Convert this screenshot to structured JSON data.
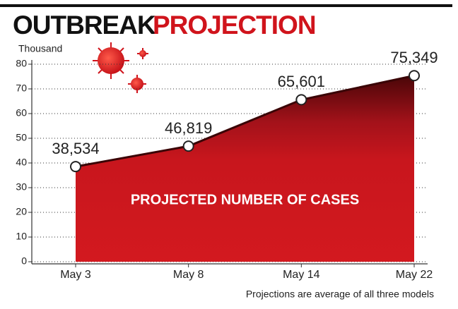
{
  "chart_data": {
    "type": "area",
    "title": "OUTBREAK",
    "title_highlight": "PROJECTION",
    "y_axis_label": "Thousand",
    "annotation": "PROJECTED NUMBER OF CASES",
    "footnote": "Projections are average of all three models",
    "categories": [
      "May 3",
      "May 8",
      "May 14",
      "May 22"
    ],
    "values": [
      38.534,
      46.819,
      65.601,
      75.349
    ],
    "value_labels": [
      "38,534",
      "46,819",
      "65,601",
      "75,349"
    ],
    "color": "#c8161d",
    "title_color": "#111111",
    "highlight_color": "#d0141c",
    "ylim": [
      0,
      80
    ],
    "yticks": [
      0,
      10,
      20,
      30,
      40,
      50,
      60,
      70,
      80
    ],
    "grid": true
  }
}
